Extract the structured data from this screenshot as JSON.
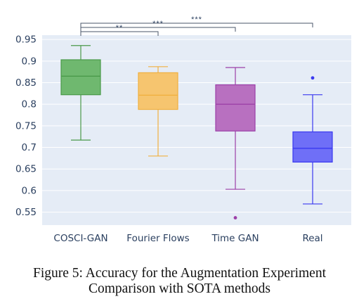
{
  "chart_data": {
    "type": "box",
    "categories": [
      "COSCI-GAN",
      "Fourier Flows",
      "Time GAN",
      "Real"
    ],
    "ylim": [
      0.52,
      0.96
    ],
    "yticks": [
      0.55,
      0.6,
      0.65,
      0.7,
      0.75,
      0.8,
      0.85,
      0.9,
      0.95
    ],
    "ytick_labels": [
      "0.55",
      "0.6",
      "0.65",
      "0.7",
      "0.75",
      "0.8",
      "0.85",
      "0.9",
      "0.95"
    ],
    "grid": true,
    "plot_background": "#e5ecf6",
    "series": [
      {
        "fill": "#6fb86f",
        "stroke": "#4a9a4a",
        "lower_whisker": 0.717,
        "q1": 0.822,
        "median": 0.865,
        "q3": 0.903,
        "upper_whisker": 0.936,
        "outliers": []
      },
      {
        "fill": "#f6c56f",
        "stroke": "#f0b040",
        "lower_whisker": 0.68,
        "q1": 0.788,
        "median": 0.821,
        "q3": 0.873,
        "upper_whisker": 0.887,
        "outliers": []
      },
      {
        "fill": "#b870c0",
        "stroke": "#9c40a8",
        "lower_whisker": 0.603,
        "q1": 0.738,
        "median": 0.8,
        "q3": 0.845,
        "upper_whisker": 0.885,
        "outliers": [
          0.537
        ]
      },
      {
        "fill": "#6f6ff7",
        "stroke": "#3a3af0",
        "lower_whisker": 0.569,
        "q1": 0.666,
        "median": 0.698,
        "q3": 0.736,
        "upper_whisker": 0.822,
        "outliers": [
          0.861
        ]
      }
    ],
    "significance": [
      {
        "from": 0,
        "to": 1,
        "label": "**"
      },
      {
        "from": 0,
        "to": 2,
        "label": "***"
      },
      {
        "from": 0,
        "to": 3,
        "label": "***"
      }
    ]
  },
  "caption": {
    "line1": "Figure 5: Accuracy for the Augmentation Experiment",
    "line2": "Comparison with SOTA methods"
  }
}
